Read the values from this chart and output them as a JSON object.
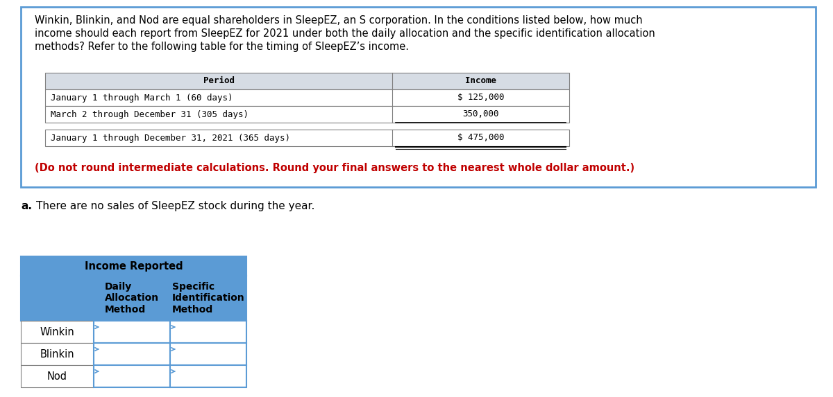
{
  "title_text_lines": [
    "Winkin, Blinkin, and Nod are equal shareholders in SleepEZ, an S corporation. In the conditions listed below, how much",
    "income should each report from SleepEZ for 2021 under both the daily allocation and the specific identification allocation",
    "methods? Refer to the following table for the timing of SleepEZ’s income."
  ],
  "top_table": {
    "header": [
      "Period",
      "Income"
    ],
    "rows": [
      [
        "January 1 through March 1 (60 days)",
        "$ 125,000"
      ],
      [
        "March 2 through December 31 (305 days)",
        "350,000"
      ]
    ],
    "total_row": [
      "January 1 through December 31, 2021 (365 days)",
      "$ 475,000"
    ],
    "header_bg": "#d6dce4",
    "border_color": "#808080"
  },
  "note_text": "(Do not round intermediate calculations. Round your final answers to the nearest whole dollar amount.)",
  "note_color": "#c00000",
  "section_a_label": "a.",
  "section_a_text": "There are no sales of SleepEZ stock during the year.",
  "bottom_table": {
    "merged_header": "Income Reported",
    "rows": [
      "Winkin",
      "Blinkin",
      "Nod"
    ],
    "header_bg": "#5b9bd5",
    "border_color": "#5b9bd5",
    "row_border_color": "#808080",
    "input_arrow_color": "#5b9bd5"
  },
  "bg_color": "#ffffff",
  "box_border_color": "#5b9bd5",
  "monospace_font": "DejaVu Sans Mono",
  "sans_font": "DejaVu Sans"
}
